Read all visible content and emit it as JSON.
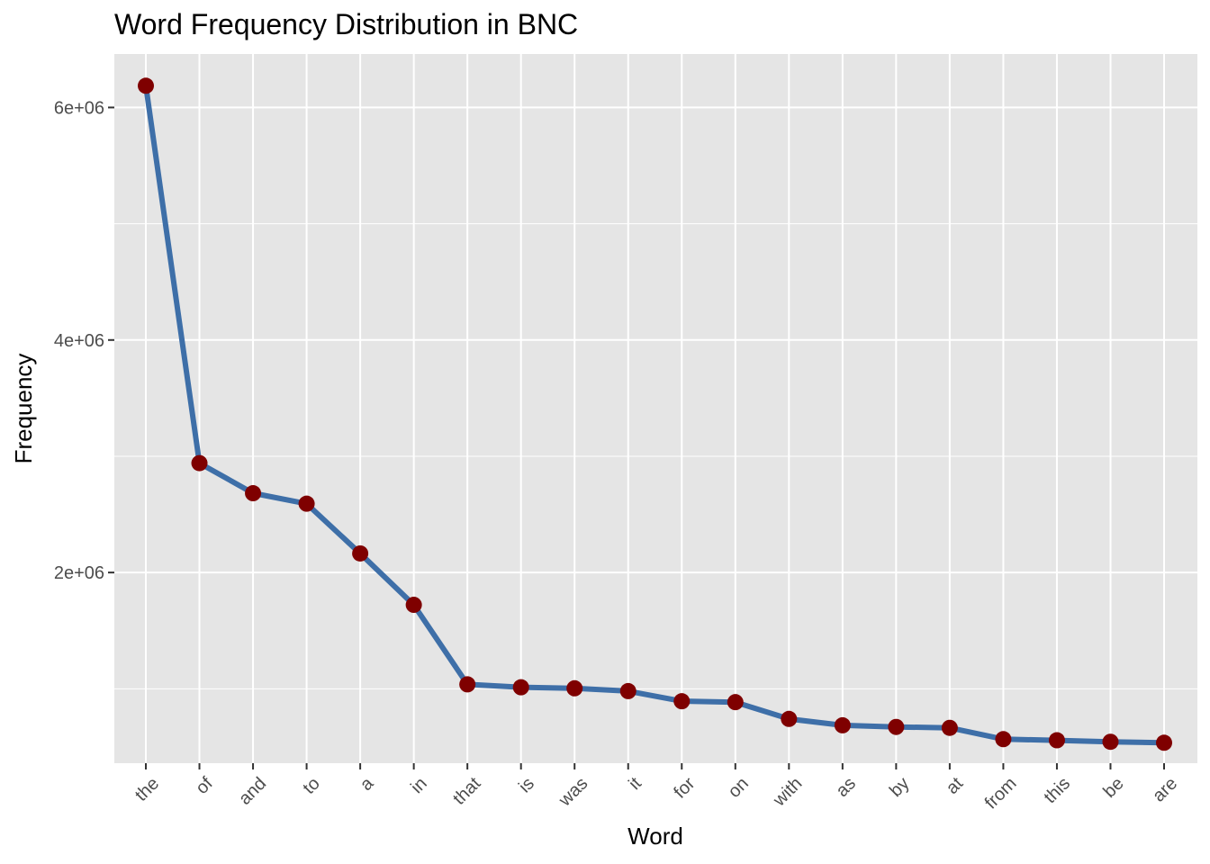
{
  "chart_data": {
    "type": "line",
    "title": "Word Frequency Distribution in BNC",
    "xlabel": "Word",
    "ylabel": "Frequency",
    "categories": [
      "the",
      "of",
      "and",
      "to",
      "a",
      "in",
      "that",
      "is",
      "was",
      "it",
      "for",
      "on",
      "with",
      "as",
      "by",
      "at",
      "from",
      "this",
      "be",
      "are"
    ],
    "values": [
      6187000,
      2941000,
      2682000,
      2592000,
      2164000,
      1722000,
      1038000,
      1013000,
      1004000,
      980000,
      893000,
      885000,
      741000,
      686000,
      672000,
      664000,
      567000,
      557000,
      544000,
      536000
    ],
    "ylim": [
      360000,
      6460000
    ],
    "yticks": [
      2000000,
      4000000,
      6000000
    ],
    "ytick_labels": [
      "2e+06",
      "4e+06",
      "6e+06"
    ],
    "grid": true,
    "colors": {
      "panel_background": "#e5e5e5",
      "grid": "#ffffff",
      "line": "#3e6fa8",
      "points": "#7f0000"
    }
  }
}
